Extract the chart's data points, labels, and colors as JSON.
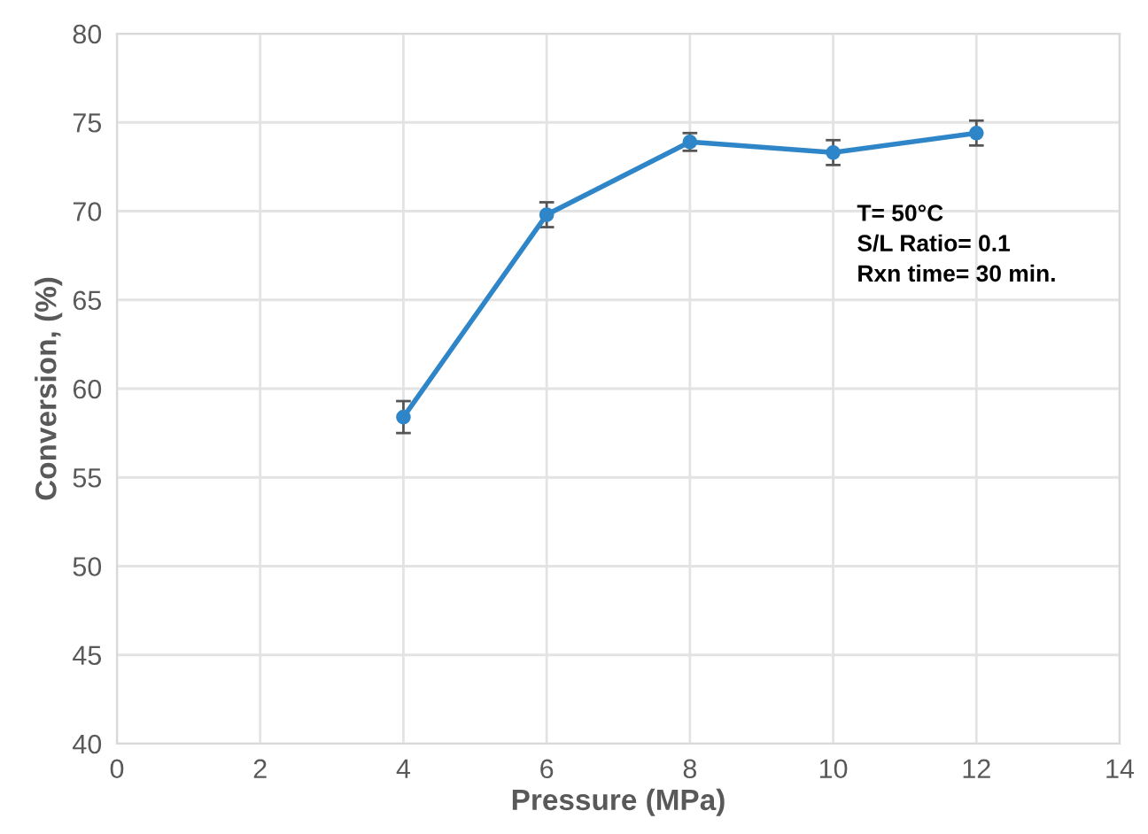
{
  "chart_data": {
    "type": "line",
    "xlabel": "Pressure (MPa)",
    "ylabel": "Conversion, (%)",
    "x": [
      4,
      6,
      8,
      10,
      12
    ],
    "series": [
      {
        "color": "#2e86c8",
        "values": [
          58.4,
          69.8,
          73.9,
          73.3,
          74.4
        ],
        "errors": [
          0.9,
          0.7,
          0.5,
          0.7,
          0.7
        ]
      }
    ],
    "xlim": [
      0,
      14
    ],
    "xticks": [
      0,
      2,
      4,
      6,
      8,
      10,
      12,
      14
    ],
    "ylim": [
      40,
      80
    ],
    "yticks": [
      40,
      45,
      50,
      55,
      60,
      65,
      70,
      75,
      80
    ],
    "grid": true,
    "marker": "circle",
    "line_style": "solid",
    "annotations": [
      "T= 50°C\nS/L Ratio= 0.1\nRxn time= 30 min."
    ]
  }
}
